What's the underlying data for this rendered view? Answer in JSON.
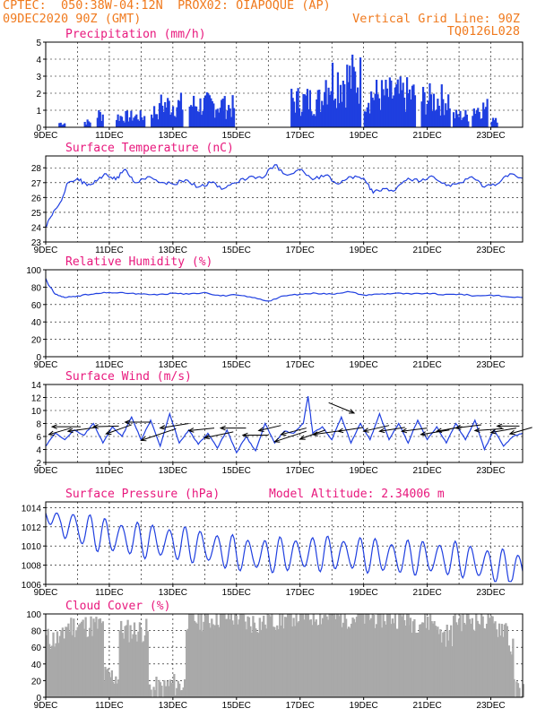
{
  "header": {
    "line1_left": "CPTEC:  050:38W-04:12N  PROX02: OIAPOQUE (AP)",
    "line2_left": "09DEC2020 90Z (GMT)",
    "line2_right": "Vertical Grid Line: 90Z",
    "line3_right": "TQ0126L028"
  },
  "colors": {
    "header": "#f07a1e",
    "title": "#e8187d",
    "series": "#1f3fe0",
    "cloud": "#a9a9a9",
    "wind_arrow": "#000000"
  },
  "x_axis": {
    "labels": [
      "9DEC",
      "11DEC",
      "13DEC",
      "15DEC",
      "17DEC",
      "19DEC",
      "21DEC",
      "23DEC"
    ],
    "start_day": 9,
    "end_day": 24
  },
  "chart_data": [
    {
      "id": "precip",
      "type": "bar",
      "title": "Precipitation (mm/h)",
      "ylim": [
        0,
        5
      ],
      "yticks": [
        0,
        1,
        2,
        3,
        4,
        5
      ],
      "bursts": [
        {
          "x": [
            9.4,
            9.6
          ],
          "peak": 0.4
        },
        {
          "x": [
            10.2,
            10.4
          ],
          "peak": 0.5
        },
        {
          "x": [
            10.6,
            10.8
          ],
          "peak": 1.2
        },
        {
          "x": [
            11.2,
            12.1
          ],
          "peak": 1.0
        },
        {
          "x": [
            12.3,
            12.6
          ],
          "peak": 1.5
        },
        {
          "x": [
            12.6,
            13.3
          ],
          "peak": 2.1
        },
        {
          "x": [
            13.5,
            14.6
          ],
          "peak": 2.1
        },
        {
          "x": [
            14.6,
            14.9
          ],
          "peak": 1.9
        },
        {
          "x": [
            16.7,
            17.7
          ],
          "peak": 2.5
        },
        {
          "x": [
            17.7,
            18.9
          ],
          "peak": 4.5
        },
        {
          "x": [
            19.0,
            20.6
          ],
          "peak": 3.0
        },
        {
          "x": [
            20.8,
            21.7
          ],
          "peak": 2.6
        },
        {
          "x": [
            21.8,
            22.3
          ],
          "peak": 1.1
        },
        {
          "x": [
            22.4,
            22.9
          ],
          "peak": 1.8
        },
        {
          "x": [
            23.0,
            23.2
          ],
          "peak": 1.0
        }
      ]
    },
    {
      "id": "temp",
      "type": "line",
      "title": "Surface Temperature (nC)",
      "ylim": [
        23,
        28.8
      ],
      "yticks": [
        23,
        24,
        25,
        26,
        27,
        28
      ],
      "x": [
        9.0,
        9.2,
        9.5,
        9.7,
        10.0,
        10.3,
        10.6,
        10.9,
        11.2,
        11.5,
        11.8,
        12.2,
        12.6,
        13.0,
        13.4,
        13.8,
        14.2,
        14.6,
        15.0,
        15.4,
        15.8,
        16.2,
        16.6,
        17.0,
        17.4,
        17.8,
        18.2,
        18.6,
        19.0,
        19.3,
        19.6,
        20.0,
        20.4,
        20.8,
        21.2,
        21.6,
        22.0,
        22.4,
        22.8,
        23.2,
        23.6,
        24.0
      ],
      "values": [
        24.0,
        24.8,
        25.8,
        27.0,
        27.3,
        26.8,
        27.1,
        27.6,
        27.2,
        27.9,
        27.0,
        27.4,
        27.0,
        26.9,
        27.2,
        26.7,
        27.0,
        26.6,
        27.0,
        27.4,
        27.3,
        28.2,
        27.5,
        27.9,
        27.2,
        27.5,
        26.9,
        27.4,
        27.3,
        26.3,
        26.6,
        26.5,
        27.3,
        27.1,
        27.4,
        26.8,
        27.0,
        27.4,
        26.7,
        26.9,
        27.6,
        27.3
      ]
    },
    {
      "id": "rh",
      "type": "line",
      "title": "Relative Humidity (%)",
      "ylim": [
        0,
        100
      ],
      "yticks": [
        0,
        20,
        40,
        60,
        80,
        100
      ],
      "x": [
        9.0,
        9.1,
        9.3,
        9.6,
        10.0,
        10.5,
        11.0,
        11.5,
        12.0,
        12.5,
        13.0,
        13.5,
        14.0,
        14.5,
        15.0,
        15.5,
        16.0,
        16.5,
        17.0,
        17.5,
        18.0,
        18.5,
        19.0,
        19.5,
        20.0,
        20.5,
        21.0,
        21.5,
        22.0,
        22.5,
        23.0,
        23.5,
        24.0
      ],
      "values": [
        90,
        82,
        72,
        68,
        70,
        72,
        74,
        73,
        72,
        71,
        73,
        72,
        74,
        70,
        71,
        68,
        64,
        70,
        72,
        73,
        72,
        75,
        71,
        72,
        73,
        72,
        73,
        71,
        72,
        70,
        71,
        69,
        68
      ]
    },
    {
      "id": "wind",
      "type": "line",
      "title": "Surface Wind (m/s)",
      "ylim": [
        2,
        14
      ],
      "yticks": [
        2,
        4,
        6,
        8,
        10,
        12,
        14
      ],
      "x": [
        9.0,
        9.3,
        9.6,
        9.9,
        10.2,
        10.5,
        10.8,
        11.1,
        11.4,
        11.7,
        12.0,
        12.3,
        12.6,
        12.9,
        13.2,
        13.5,
        13.8,
        14.1,
        14.4,
        14.7,
        15.0,
        15.3,
        15.6,
        15.9,
        16.2,
        16.5,
        16.8,
        17.1,
        17.25,
        17.4,
        17.7,
        18.0,
        18.3,
        18.6,
        18.9,
        19.2,
        19.5,
        19.8,
        20.1,
        20.4,
        20.7,
        21.0,
        21.3,
        21.6,
        21.9,
        22.2,
        22.5,
        22.8,
        23.1,
        23.4,
        23.7,
        24.0
      ],
      "values": [
        4.5,
        6.5,
        5.5,
        7.0,
        6.2,
        8.0,
        5.0,
        7.5,
        6.0,
        9.0,
        5.5,
        8.5,
        4.5,
        9.5,
        5.0,
        7.0,
        4.8,
        6.5,
        4.2,
        7.0,
        3.5,
        6.0,
        3.8,
        8.0,
        5.0,
        6.8,
        6.5,
        8.0,
        12.2,
        6.5,
        7.5,
        5.5,
        9.0,
        5.0,
        8.0,
        5.5,
        9.5,
        5.5,
        8.0,
        5.0,
        8.5,
        5.5,
        7.5,
        5.0,
        8.0,
        5.5,
        8.5,
        4.0,
        7.0,
        4.5,
        6.0,
        6.5
      ],
      "arrows": [
        {
          "x": 9.1,
          "y": 6.3,
          "dx": 0.7,
          "dy": 1.0
        },
        {
          "x": 9.2,
          "y": 7.5,
          "dx": 0.9,
          "dy": 0.0
        },
        {
          "x": 9.7,
          "y": 6.8,
          "dx": 0.9,
          "dy": 0.6
        },
        {
          "x": 10.5,
          "y": 7.5,
          "dx": 0.8,
          "dy": 0.1
        },
        {
          "x": 10.9,
          "y": 6.4,
          "dx": 0.8,
          "dy": 1.4
        },
        {
          "x": 11.5,
          "y": 8.2,
          "dx": 0.8,
          "dy": 0.0
        },
        {
          "x": 12.0,
          "y": 5.4,
          "dx": 1.1,
          "dy": 1.8
        },
        {
          "x": 12.6,
          "y": 7.3,
          "dx": 0.9,
          "dy": 0.7
        },
        {
          "x": 13.5,
          "y": 6.9,
          "dx": 0.8,
          "dy": 0.4
        },
        {
          "x": 14.0,
          "y": 5.8,
          "dx": 0.9,
          "dy": 0.9
        },
        {
          "x": 14.5,
          "y": 7.3,
          "dx": 0.8,
          "dy": 0.0
        },
        {
          "x": 15.2,
          "y": 6.2,
          "dx": 0.8,
          "dy": 0.0
        },
        {
          "x": 15.7,
          "y": 6.9,
          "dx": 0.7,
          "dy": 0.8
        },
        {
          "x": 16.2,
          "y": 5.2,
          "dx": 1.0,
          "dy": 1.6
        },
        {
          "x": 16.4,
          "y": 6.3,
          "dx": 0.8,
          "dy": 1.0
        },
        {
          "x": 17.0,
          "y": 5.6,
          "dx": 0.8,
          "dy": 1.4
        },
        {
          "x": 17.4,
          "y": 6.3,
          "dx": 0.9,
          "dy": 0.6
        },
        {
          "x": 18.2,
          "y": 6.8,
          "dx": 0.8,
          "dy": 0.6
        },
        {
          "x": 18.7,
          "y": 9.6,
          "dx": -0.8,
          "dy": 1.6
        },
        {
          "x": 19.0,
          "y": 6.8,
          "dx": 0.8,
          "dy": 0.9
        },
        {
          "x": 19.5,
          "y": 6.8,
          "dx": 0.8,
          "dy": 0.6
        },
        {
          "x": 20.2,
          "y": 6.8,
          "dx": 0.8,
          "dy": 0.5
        },
        {
          "x": 20.8,
          "y": 6.3,
          "dx": 0.9,
          "dy": 0.7
        },
        {
          "x": 21.3,
          "y": 6.8,
          "dx": 0.8,
          "dy": 0.7
        },
        {
          "x": 21.9,
          "y": 7.3,
          "dx": 0.8,
          "dy": 0.5
        },
        {
          "x": 22.5,
          "y": 6.9,
          "dx": 0.9,
          "dy": 0.3
        },
        {
          "x": 23.0,
          "y": 6.6,
          "dx": 0.8,
          "dy": 0.7
        },
        {
          "x": 23.2,
          "y": 7.6,
          "dx": 0.7,
          "dy": 0.0
        },
        {
          "x": 23.6,
          "y": 6.4,
          "dx": 0.7,
          "dy": 1.0
        }
      ]
    },
    {
      "id": "pres",
      "type": "line",
      "title": "Surface Pressure (hPa)",
      "extra_label": "Model Altitude: 2.34006 m",
      "ylim": [
        1006,
        1014.6
      ],
      "yticks": [
        1006,
        1008,
        1010,
        1012,
        1014
      ],
      "base": [
        [
          9.0,
          1013.2
        ],
        [
          10.0,
          1011.8
        ],
        [
          11.0,
          1011.0
        ],
        [
          12.0,
          1010.6
        ],
        [
          13.0,
          1010.3
        ],
        [
          14.0,
          1009.9
        ],
        [
          15.0,
          1009.2
        ],
        [
          16.0,
          1009.0
        ],
        [
          17.0,
          1009.2
        ],
        [
          18.0,
          1009.2
        ],
        [
          19.0,
          1009.1
        ],
        [
          20.0,
          1008.8
        ],
        [
          21.0,
          1008.8
        ],
        [
          22.0,
          1008.6
        ],
        [
          23.0,
          1008.0
        ],
        [
          24.0,
          1007.5
        ]
      ],
      "amplitude": 1.6
    },
    {
      "id": "cloud",
      "type": "bar",
      "title": "Cloud Cover (%)",
      "ylim": [
        0,
        100
      ],
      "yticks": [
        0,
        20,
        40,
        60,
        80,
        100
      ],
      "segments": [
        {
          "x": [
            9.0,
            9.6
          ],
          "level": 70
        },
        {
          "x": [
            9.6,
            10.8
          ],
          "level": 86
        },
        {
          "x": [
            10.8,
            11.3
          ],
          "level": 25
        },
        {
          "x": [
            11.3,
            12.2
          ],
          "level": 80
        },
        {
          "x": [
            12.2,
            12.8
          ],
          "level": 10
        },
        {
          "x": [
            12.8,
            13.4
          ],
          "level": 15
        },
        {
          "x": [
            13.4,
            14.3
          ],
          "level": 94
        },
        {
          "x": [
            14.3,
            15.2
          ],
          "level": 97
        },
        {
          "x": [
            15.2,
            16.0
          ],
          "level": 90
        },
        {
          "x": [
            16.0,
            16.6
          ],
          "level": 94
        },
        {
          "x": [
            16.6,
            18.0
          ],
          "level": 99
        },
        {
          "x": [
            18.0,
            20.4
          ],
          "level": 97
        },
        {
          "x": [
            20.4,
            21.3
          ],
          "level": 92
        },
        {
          "x": [
            21.3,
            21.8
          ],
          "level": 75
        },
        {
          "x": [
            21.8,
            22.9
          ],
          "level": 94
        },
        {
          "x": [
            22.9,
            23.5
          ],
          "level": 85
        },
        {
          "x": [
            23.5,
            23.7
          ],
          "level": 60
        },
        {
          "x": [
            23.7,
            24.0
          ],
          "level": 8
        }
      ]
    }
  ]
}
